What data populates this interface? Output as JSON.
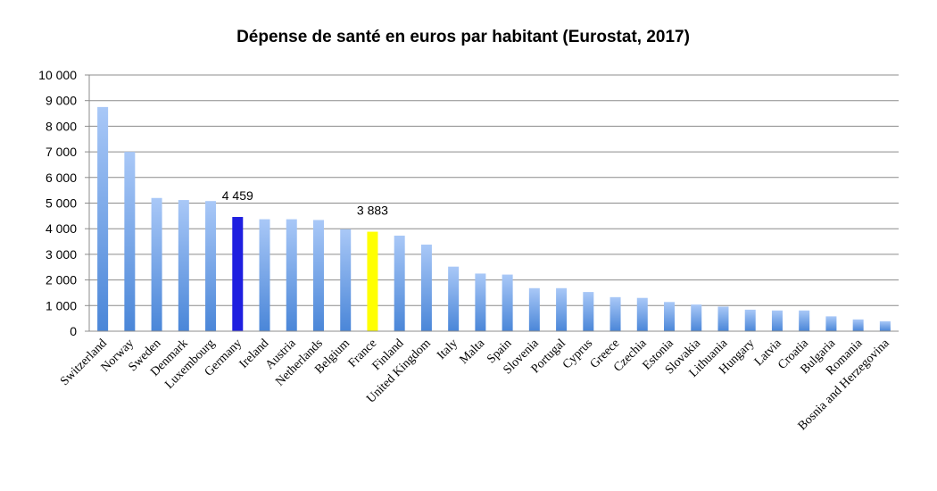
{
  "chart_data": {
    "type": "bar",
    "title": "Dépense de santé en euros par habitant (Eurostat, 2017)",
    "xlabel": "",
    "ylabel": "",
    "ylim": [
      0,
      10000
    ],
    "yticks": [
      0,
      1000,
      2000,
      3000,
      4000,
      5000,
      6000,
      7000,
      8000,
      9000,
      10000
    ],
    "ytick_labels": [
      "0",
      "1 000",
      "2 000",
      "3 000",
      "4 000",
      "5 000",
      "6 000",
      "7 000",
      "8 000",
      "9 000",
      "10 000"
    ],
    "grid": true,
    "legend": "none",
    "categories": [
      "Switzerland",
      "Norway",
      "Sweden",
      "Denmark",
      "Luxembourg",
      "Germany",
      "Ireland",
      "Austria",
      "Netherlands",
      "Belgium",
      "France",
      "Finland",
      "United Kingdom",
      "Italy",
      "Malta",
      "Spain",
      "Slovenia",
      "Portugal",
      "Cyprus",
      "Greece",
      "Czechia",
      "Estonia",
      "Slovakia",
      "Lithuania",
      "Hungary",
      "Latvia",
      "Croatia",
      "Bulgaria",
      "Romania",
      "Bosnia and Herzegovina"
    ],
    "values": [
      8750,
      7000,
      5200,
      5120,
      5080,
      4459,
      4370,
      4370,
      4340,
      3980,
      3883,
      3730,
      3380,
      2520,
      2250,
      2210,
      1680,
      1680,
      1530,
      1330,
      1300,
      1140,
      1040,
      960,
      840,
      810,
      810,
      580,
      460,
      390
    ],
    "highlights": [
      {
        "category": "Germany",
        "color": "#1f1fe0",
        "label": "4 459"
      },
      {
        "category": "France",
        "color": "#ffff00",
        "label": "3 883"
      }
    ],
    "colors": {
      "bar_top": "#a9c8f7",
      "bar_bottom": "#4a86d8",
      "grid": "#8c8c8c",
      "axis": "#8c8c8c"
    }
  }
}
